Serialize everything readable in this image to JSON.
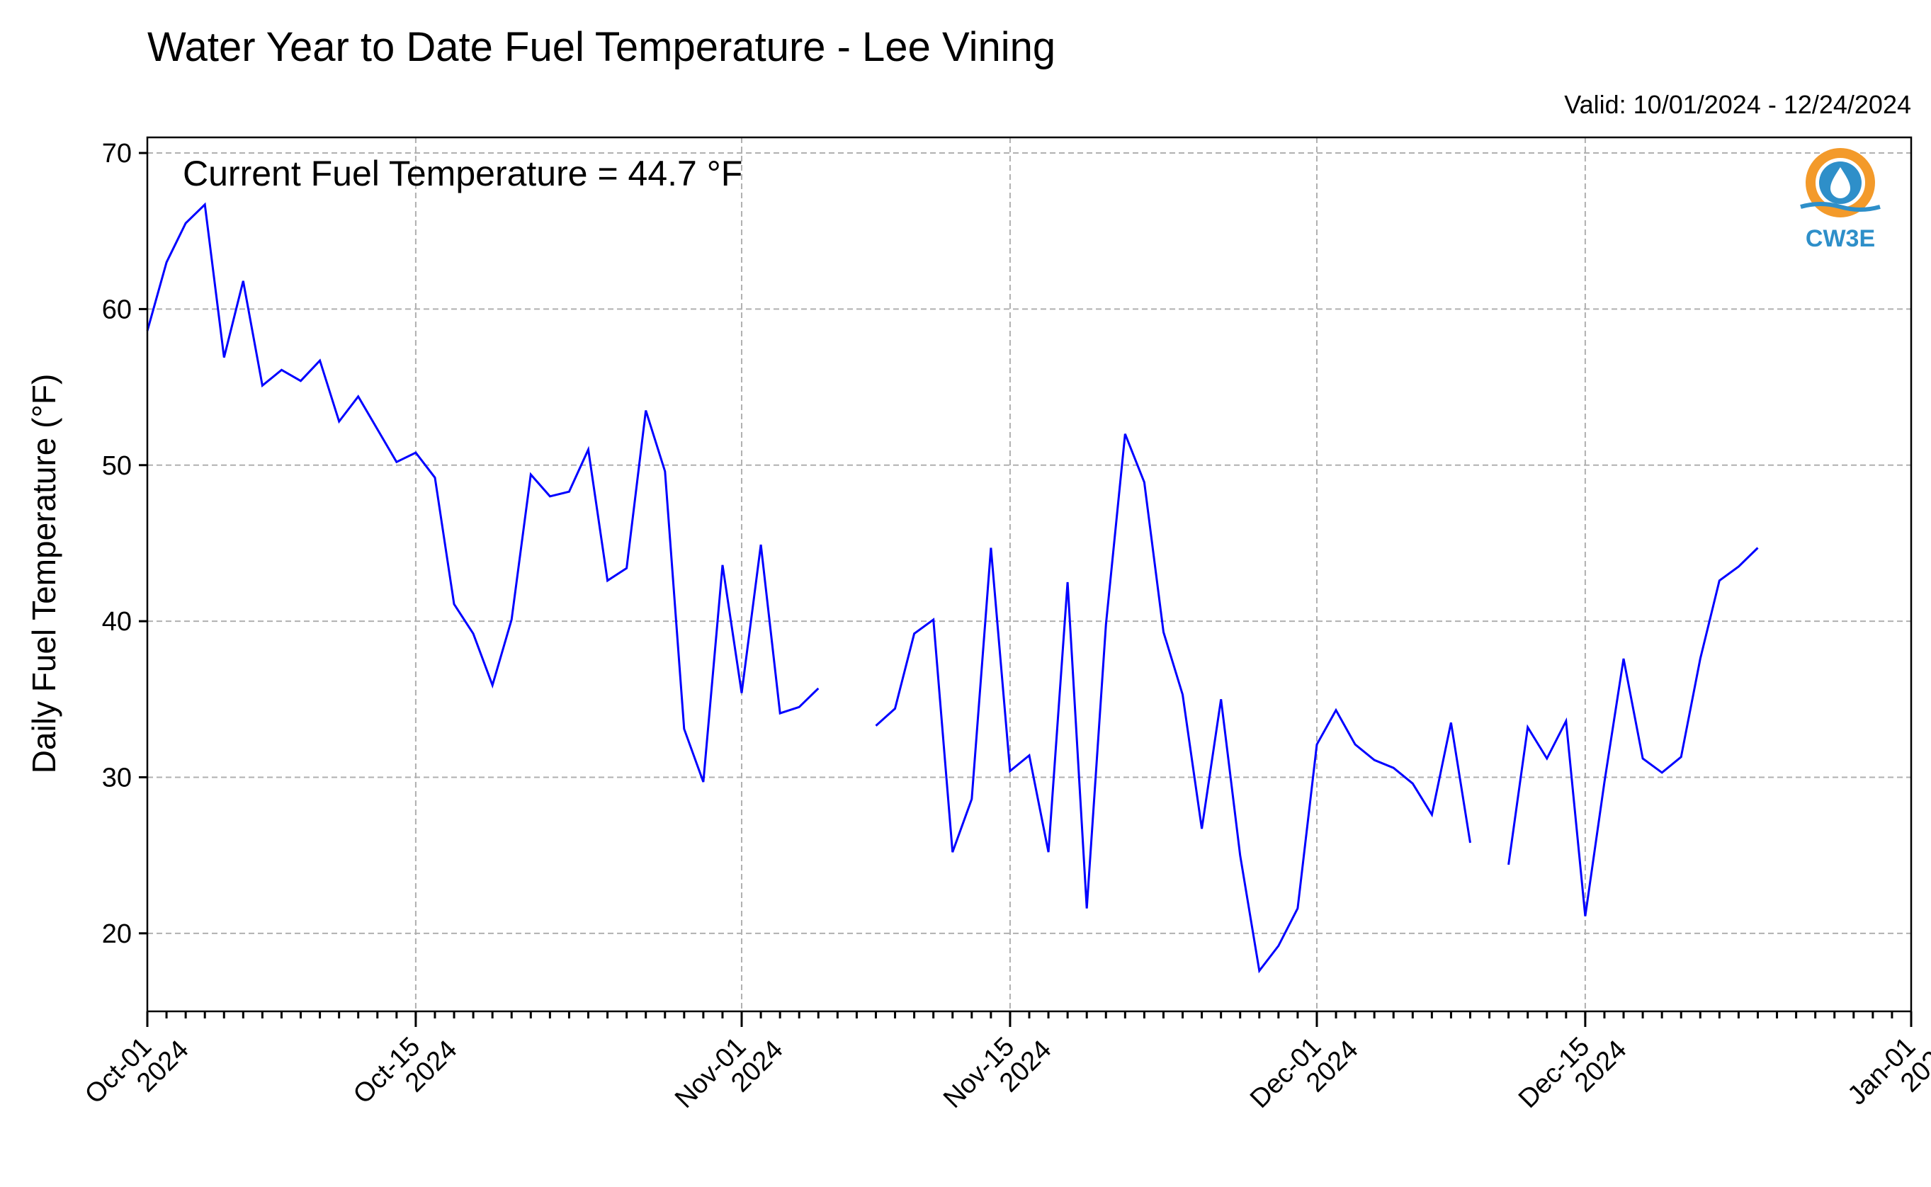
{
  "chart_data": {
    "type": "line",
    "title": "Water Year to Date Fuel Temperature - Lee Vining",
    "valid_text": "Valid: 10/01/2024 - 12/24/2024",
    "annotation": "Current Fuel Temperature = 44.7 °F",
    "ylabel": "Daily Fuel Temperature (°F)",
    "xlabel": "",
    "ylim": [
      15,
      71
    ],
    "xlim": [
      "2024-10-01",
      "2025-01-01"
    ],
    "grid": true,
    "yticks": [
      20,
      30,
      40,
      50,
      60,
      70
    ],
    "xticks": [
      {
        "date": "2024-10-01",
        "line1": "Oct-01",
        "line2": "2024"
      },
      {
        "date": "2024-10-15",
        "line1": "Oct-15",
        "line2": "2024"
      },
      {
        "date": "2024-11-01",
        "line1": "Nov-01",
        "line2": "2024"
      },
      {
        "date": "2024-11-15",
        "line1": "Nov-15",
        "line2": "2024"
      },
      {
        "date": "2024-12-01",
        "line1": "Dec-01",
        "line2": "2024"
      },
      {
        "date": "2024-12-15",
        "line1": "Dec-15",
        "line2": "2024"
      },
      {
        "date": "2025-01-01",
        "line1": "Jan-01",
        "line2": "2025"
      }
    ],
    "series": [
      {
        "color": "#0000ff",
        "x": [
          "2024-10-01",
          "2024-10-02",
          "2024-10-03",
          "2024-10-04",
          "2024-10-05",
          "2024-10-06",
          "2024-10-07",
          "2024-10-08",
          "2024-10-09",
          "2024-10-10",
          "2024-10-11",
          "2024-10-12",
          "2024-10-13",
          "2024-10-14",
          "2024-10-15",
          "2024-10-16",
          "2024-10-17",
          "2024-10-18",
          "2024-10-19",
          "2024-10-20",
          "2024-10-21",
          "2024-10-22",
          "2024-10-23",
          "2024-10-24",
          "2024-10-25",
          "2024-10-26",
          "2024-10-27",
          "2024-10-28",
          "2024-10-29",
          "2024-10-30",
          "2024-10-31",
          "2024-11-01",
          "2024-11-02",
          "2024-11-03",
          "2024-11-04",
          "2024-11-05",
          "2024-11-06",
          "2024-11-07",
          "2024-11-08",
          "2024-11-09",
          "2024-11-10",
          "2024-11-11",
          "2024-11-12",
          "2024-11-13",
          "2024-11-14",
          "2024-11-15",
          "2024-11-16",
          "2024-11-17",
          "2024-11-18",
          "2024-11-19",
          "2024-11-20",
          "2024-11-21",
          "2024-11-22",
          "2024-11-23",
          "2024-11-24",
          "2024-11-25",
          "2024-11-26",
          "2024-11-27",
          "2024-11-28",
          "2024-11-29",
          "2024-11-30",
          "2024-12-01",
          "2024-12-02",
          "2024-12-03",
          "2024-12-04",
          "2024-12-05",
          "2024-12-06",
          "2024-12-07",
          "2024-12-08",
          "2024-12-09",
          "2024-12-10",
          "2024-12-11",
          "2024-12-12",
          "2024-12-13",
          "2024-12-14",
          "2024-12-15",
          "2024-12-16",
          "2024-12-17",
          "2024-12-18",
          "2024-12-19",
          "2024-12-20",
          "2024-12-21",
          "2024-12-22",
          "2024-12-23",
          "2024-12-24"
        ],
        "values": [
          58.6,
          63.0,
          65.5,
          66.7,
          56.9,
          61.8,
          55.1,
          56.1,
          55.4,
          56.7,
          52.8,
          54.4,
          52.3,
          50.2,
          50.8,
          49.2,
          41.1,
          39.2,
          35.9,
          40.1,
          49.4,
          48.0,
          48.3,
          51.0,
          42.6,
          43.4,
          53.5,
          49.6,
          33.1,
          29.7,
          43.6,
          35.4,
          44.9,
          34.1,
          34.5,
          35.7,
          null,
          null,
          33.3,
          34.4,
          39.2,
          40.1,
          25.2,
          28.6,
          44.7,
          30.4,
          31.4,
          25.2,
          42.5,
          21.6,
          39.8,
          52.0,
          48.9,
          39.3,
          35.3,
          26.7,
          35.0,
          25.0,
          17.6,
          19.2,
          21.6,
          32.1,
          34.3,
          32.1,
          31.1,
          30.6,
          29.6,
          27.6,
          33.5,
          25.8,
          null,
          24.4,
          33.2,
          31.2,
          33.6,
          21.1,
          29.7,
          37.6,
          31.2,
          30.3,
          31.3,
          37.6,
          42.6,
          43.5,
          44.7
        ]
      }
    ]
  },
  "logo": {
    "text": "CW3E",
    "colors": {
      "ring": "#f39a2a",
      "drop": "#2e8fc9"
    }
  }
}
